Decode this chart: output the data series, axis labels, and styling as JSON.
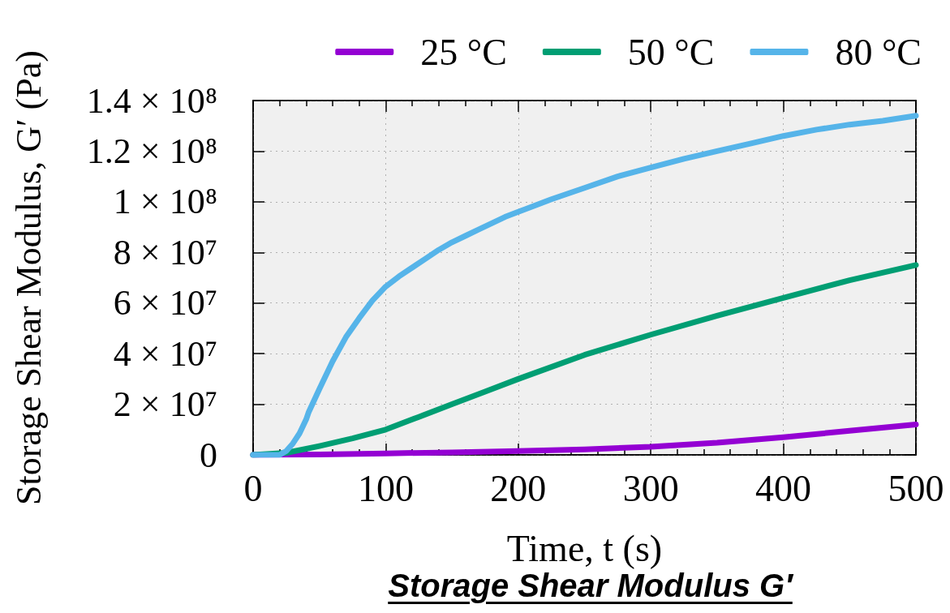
{
  "chart_data": {
    "type": "line",
    "title": "Storage Shear Modulus G′",
    "xlabel": "Time, t (s)",
    "ylabel": "Storage Shear Modulus, G′ (Pa)",
    "xlim": [
      0,
      500
    ],
    "xticks": [
      0,
      100,
      200,
      300,
      400,
      500
    ],
    "ylim": [
      0,
      140000000
    ],
    "yticks": [
      0,
      {
        "value": 20000000,
        "label": "2 × 10⁷"
      },
      {
        "value": 40000000,
        "label": "4 × 10⁷"
      },
      {
        "value": 60000000,
        "label": "6 × 10⁷"
      },
      {
        "value": 80000000,
        "label": "8 × 10⁷"
      },
      {
        "value": 100000000,
        "label": "1 × 10⁸"
      },
      {
        "value": 120000000,
        "label": "1.2 × 10⁸"
      },
      {
        "value": 140000000,
        "label": "1.4 × 10⁸"
      }
    ],
    "grid": true,
    "legend": "top",
    "series": [
      {
        "name": "25 °C",
        "color": "#9400d3",
        "x": [
          0,
          50,
          100,
          150,
          200,
          250,
          300,
          350,
          400,
          450,
          500
        ],
        "values": [
          0,
          200000,
          600000,
          1000000,
          1500000,
          2200000,
          3200000,
          4800000,
          7000000,
          9500000,
          12000000
        ]
      },
      {
        "name": "50 °C",
        "color": "#009e73",
        "x": [
          0,
          25,
          50,
          75,
          100,
          125,
          150,
          175,
          200,
          250,
          300,
          350,
          400,
          450,
          500
        ],
        "values": [
          0,
          800000,
          3500000,
          6500000,
          10000000,
          15000000,
          20000000,
          25000000,
          30000000,
          39500000,
          47500000,
          55000000,
          62000000,
          69000000,
          75000000
        ]
      },
      {
        "name": "80 °C",
        "color": "#56b4e9",
        "x": [
          0,
          20,
          25,
          30,
          35,
          40,
          42,
          50,
          60,
          70,
          80,
          90,
          100,
          110,
          120,
          130,
          140,
          150,
          160,
          170,
          180,
          190,
          200,
          225,
          250,
          275,
          300,
          325,
          350,
          375,
          400,
          425,
          450,
          475,
          500
        ],
        "values": [
          0,
          0,
          1500000,
          4500000,
          8500000,
          14000000,
          17000000,
          26000000,
          37000000,
          46500000,
          54000000,
          61000000,
          66500000,
          70500000,
          74000000,
          77500000,
          81000000,
          84000000,
          86500000,
          89000000,
          91500000,
          94000000,
          96000000,
          101000000,
          105500000,
          110000000,
          113500000,
          117000000,
          120000000,
          123000000,
          126000000,
          128500000,
          130500000,
          132000000,
          134000000
        ]
      }
    ]
  }
}
